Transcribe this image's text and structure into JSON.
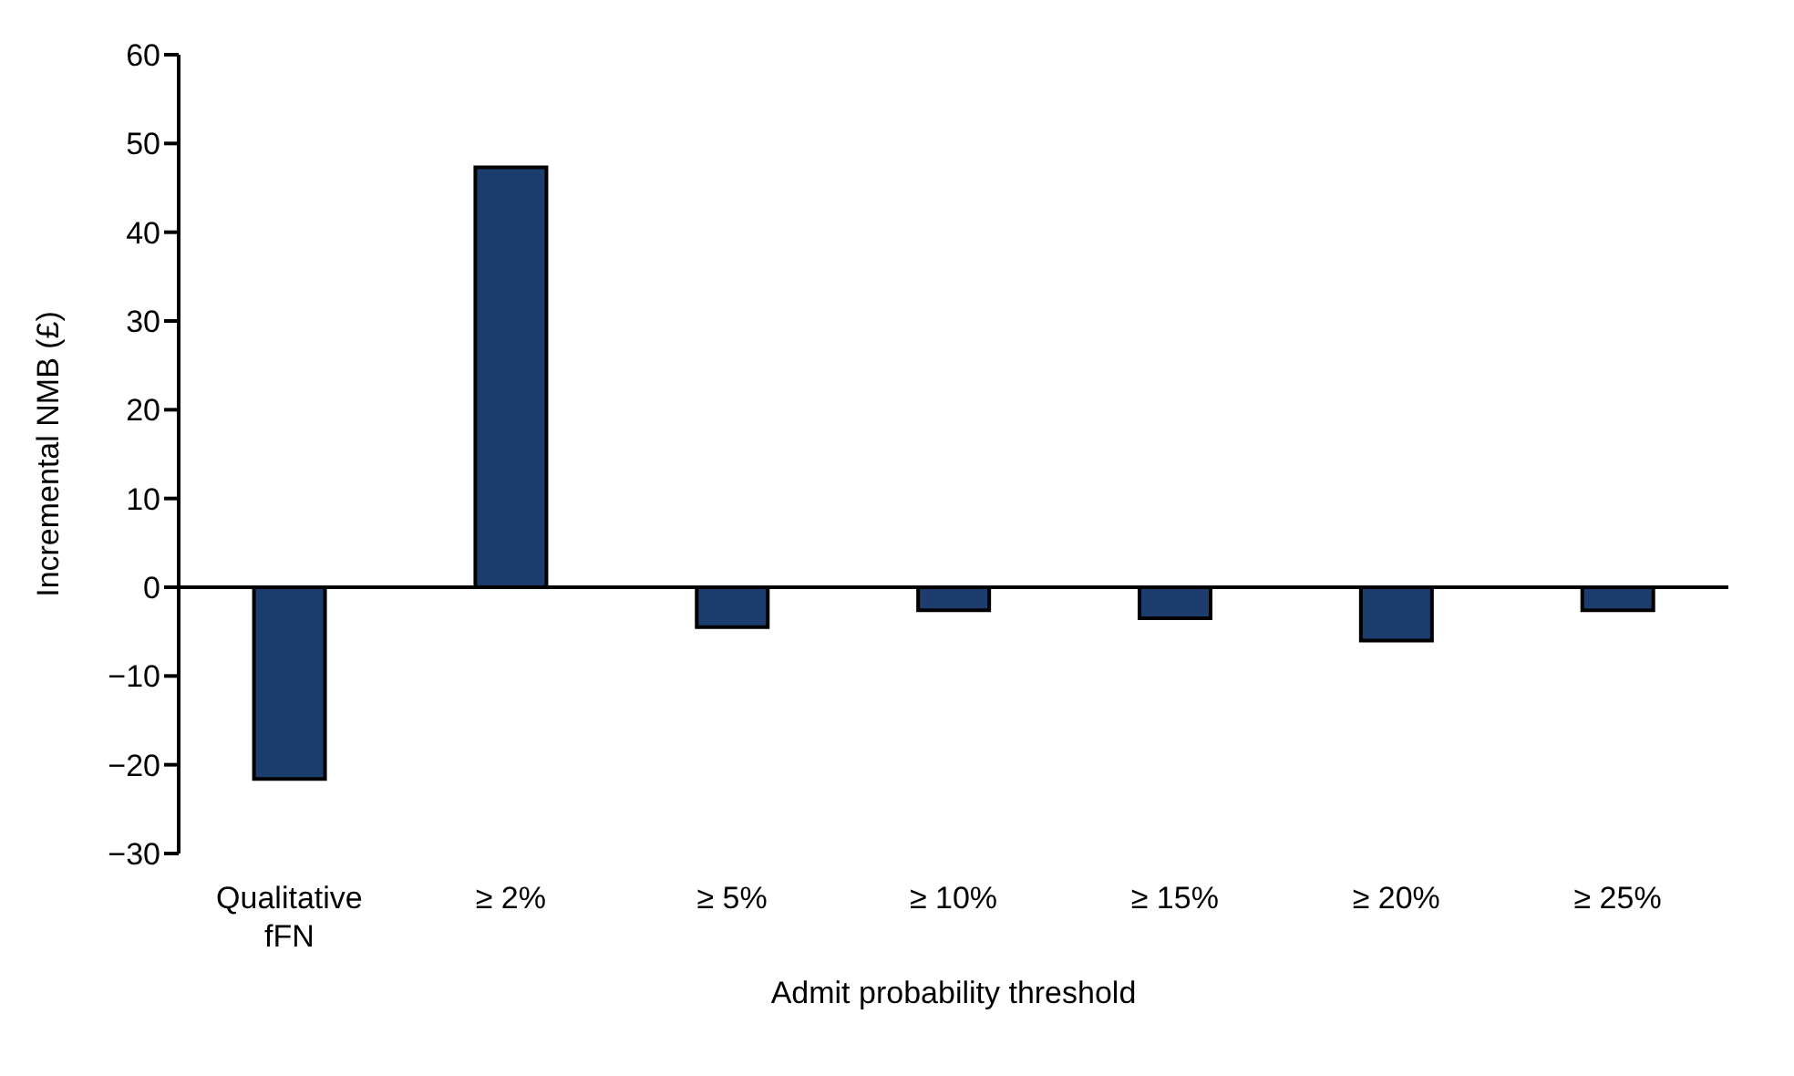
{
  "chart_data": {
    "type": "bar",
    "xlabel": "Admit probability threshold",
    "ylabel": "Incremental NMB (£)",
    "categories": [
      "Qualitative fFN",
      "≥ 2%",
      "≥ 5%",
      "≥ 10%",
      "≥ 15%",
      "≥ 20%",
      "≥ 25%"
    ],
    "values": [
      -21.6,
      47.3,
      -4.5,
      -2.6,
      -3.5,
      -6.0,
      -2.6
    ],
    "color": "#1c3d6e",
    "ylim": [
      -30,
      60
    ],
    "yticks": [
      {
        "value": -30,
        "label": "−30"
      },
      {
        "value": -20,
        "label": "−20"
      },
      {
        "value": -10,
        "label": "−10"
      },
      0,
      10,
      20,
      30,
      40,
      50,
      60
    ],
    "legend": false
  }
}
